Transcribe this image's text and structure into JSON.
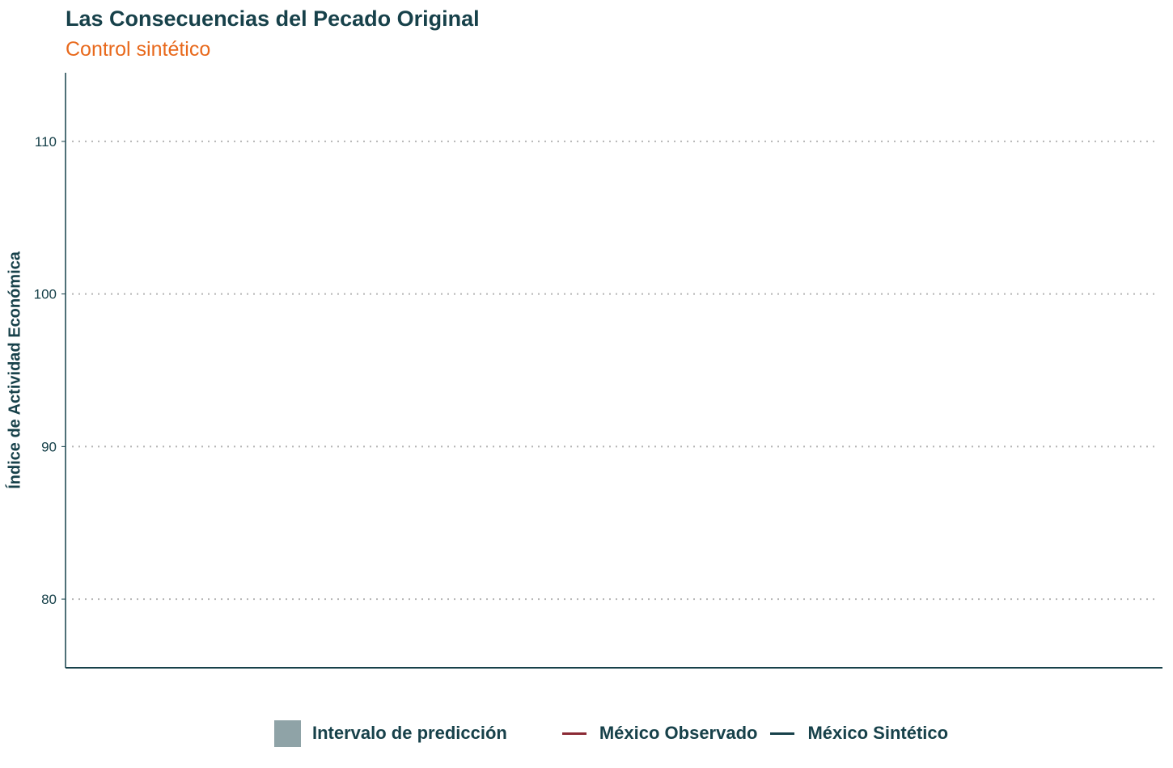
{
  "chart_data": {
    "type": "line",
    "title": "Las Consecuencias del Pecado Original",
    "subtitle": "Control sintético",
    "xlabel": "",
    "ylabel": "Índice de Actividad Económica",
    "ylim": [
      75.5,
      114.5
    ],
    "yticks": [
      80,
      90,
      100,
      110
    ],
    "grid": true,
    "legend_position": "bottom",
    "series": [
      {
        "name": "México Observado",
        "color": "#8b2a35",
        "values": []
      },
      {
        "name": "México Sintético",
        "color": "#17414a",
        "values": []
      }
    ],
    "band": {
      "name": "Intervalo de predicción",
      "color": "#8fa3a7"
    }
  }
}
